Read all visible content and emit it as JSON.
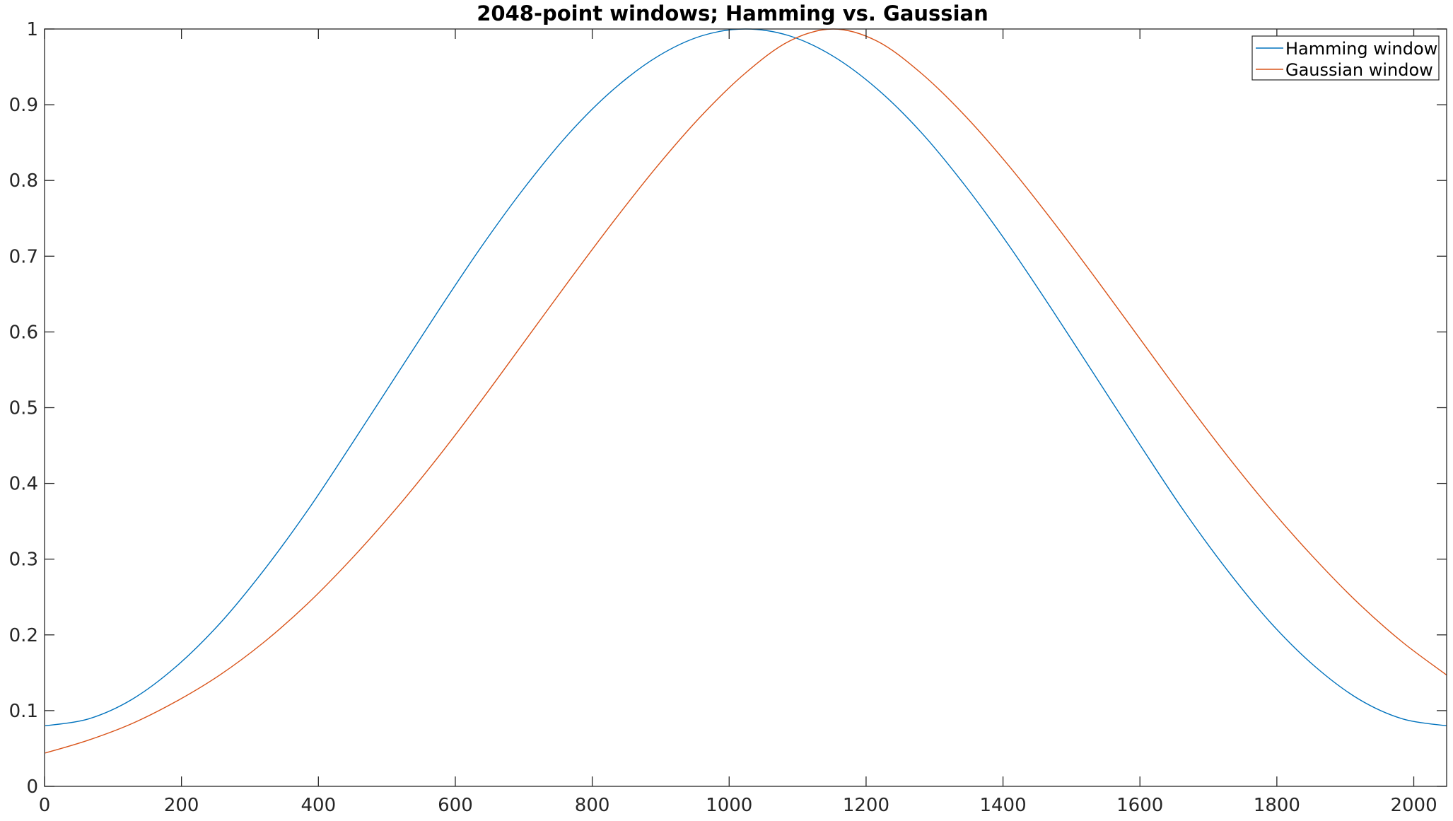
{
  "chart_data": {
    "type": "line",
    "title": "2048-point windows; Hamming vs. Gaussian",
    "xlabel": "",
    "ylabel": "",
    "xlim": [
      0,
      2048
    ],
    "ylim": [
      0,
      1
    ],
    "x_ticks": [
      0,
      200,
      400,
      600,
      800,
      1000,
      1200,
      1400,
      1600,
      1800,
      2000
    ],
    "x_tick_labels": [
      "0",
      "200",
      "400",
      "600",
      "800",
      "1000",
      "1200",
      "1400",
      "1600",
      "1800",
      "2000"
    ],
    "y_ticks": [
      0,
      0.1,
      0.2,
      0.3,
      0.4,
      0.5,
      0.6,
      0.7,
      0.8,
      0.9,
      1
    ],
    "y_tick_labels": [
      "0",
      "0.1",
      "0.2",
      "0.3",
      "0.4",
      "0.5",
      "0.6",
      "0.7",
      "0.8",
      "0.9",
      "1"
    ],
    "grid": false,
    "legend_position": "top-right",
    "x": [
      1,
      64,
      128,
      192,
      256,
      320,
      384,
      448,
      512,
      576,
      640,
      704,
      768,
      832,
      896,
      960,
      1024,
      1088,
      1152,
      1216,
      1280,
      1344,
      1408,
      1472,
      1536,
      1600,
      1664,
      1728,
      1792,
      1856,
      1920,
      1984,
      2048
    ],
    "series": [
      {
        "name": "Hamming window",
        "color": "#0072BD",
        "values": [
          0.08,
          0.089,
          0.115,
          0.158,
          0.215,
          0.285,
          0.364,
          0.451,
          0.54,
          0.629,
          0.715,
          0.794,
          0.864,
          0.921,
          0.964,
          0.991,
          1.0,
          0.991,
          0.964,
          0.921,
          0.864,
          0.794,
          0.715,
          0.629,
          0.54,
          0.451,
          0.364,
          0.285,
          0.215,
          0.158,
          0.115,
          0.089,
          0.08
        ]
      },
      {
        "name": "Gaussian window",
        "color": "#D95319",
        "values": [
          0.044,
          0.061,
          0.083,
          0.112,
          0.147,
          0.19,
          0.241,
          0.3,
          0.365,
          0.436,
          0.512,
          0.591,
          0.67,
          0.747,
          0.82,
          0.886,
          0.942,
          0.984,
          1.0,
          0.984,
          0.942,
          0.886,
          0.82,
          0.747,
          0.67,
          0.591,
          0.512,
          0.436,
          0.365,
          0.3,
          0.241,
          0.19,
          0.147
        ]
      }
    ]
  }
}
